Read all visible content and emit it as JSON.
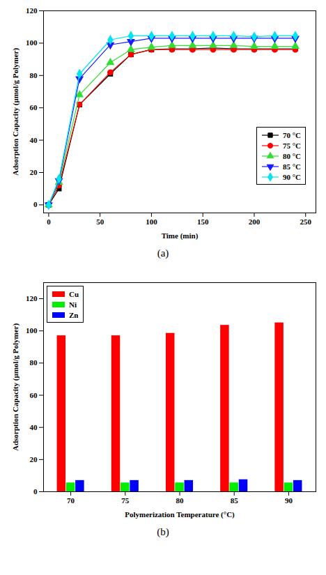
{
  "chart_data": [
    {
      "type": "line",
      "xlabel": "Time (min)",
      "ylabel": "Adsorption Capacity (μmol/g Polymer)",
      "x": [
        0,
        10,
        30,
        60,
        80,
        100,
        120,
        140,
        160,
        180,
        200,
        220,
        240
      ],
      "series": [
        {
          "name": "70 °C",
          "color": "#000000",
          "marker": "square",
          "values": [
            0,
            10,
            62,
            81,
            93,
            96,
            96.5,
            96.5,
            97,
            96.5,
            96.5,
            96.5,
            96.5
          ]
        },
        {
          "name": "75 °C",
          "color": "#ff0000",
          "marker": "circle",
          "values": [
            0,
            12,
            62,
            82,
            93,
            96,
            96,
            96,
            96,
            96,
            96,
            96,
            96
          ]
        },
        {
          "name": "80 °C",
          "color": "#33dd33",
          "marker": "triangle",
          "values": [
            0,
            14,
            68,
            88,
            96,
            97.5,
            98.5,
            98.5,
            98.5,
            98.5,
            98,
            98,
            98
          ]
        },
        {
          "name": "85 °C",
          "color": "#1a1aff",
          "marker": "triangle-down",
          "values": [
            0,
            15,
            78,
            99,
            101,
            103,
            103,
            103,
            103,
            103,
            103,
            103,
            103
          ]
        },
        {
          "name": "90 °C",
          "color": "#00e5ee",
          "marker": "diamond",
          "values": [
            0,
            16,
            81,
            102,
            104.5,
            104.5,
            104.5,
            104.5,
            104.5,
            104.5,
            104,
            104.5,
            104.5
          ]
        }
      ],
      "xlim": [
        -5,
        260
      ],
      "xticks": [
        0,
        50,
        100,
        150,
        200,
        250
      ],
      "ylim": [
        -5,
        120
      ],
      "yticks": [
        0,
        20,
        40,
        60,
        80,
        100,
        120
      ],
      "grid": false,
      "legend": "lower right",
      "caption": "(a)"
    },
    {
      "type": "bar",
      "xlabel": "Polymerization Temperature (°C)",
      "ylabel": "Adsorption Capacity (μmol/g Polymer)",
      "categories": [
        "70",
        "75",
        "80",
        "85",
        "90"
      ],
      "series": [
        {
          "name": "Cu",
          "color": "#ff0000",
          "values": [
            97,
            97,
            98.5,
            103.5,
            105
          ]
        },
        {
          "name": "Ni",
          "color": "#00ee00",
          "values": [
            5.5,
            5.5,
            5.5,
            5.5,
            5.5
          ]
        },
        {
          "name": "Zn",
          "color": "#0000ff",
          "values": [
            7,
            7,
            7,
            7.5,
            7
          ]
        }
      ],
      "ylim": [
        0,
        130
      ],
      "yticks": [
        0,
        20,
        40,
        60,
        80,
        100,
        120
      ],
      "grid": false,
      "legend": "upper left",
      "caption": "(b)"
    }
  ]
}
